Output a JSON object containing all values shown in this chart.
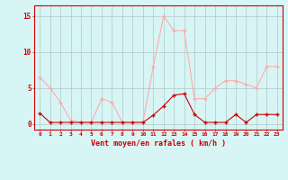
{
  "x": [
    0,
    1,
    2,
    3,
    4,
    5,
    6,
    7,
    8,
    9,
    10,
    11,
    12,
    13,
    14,
    15,
    16,
    17,
    18,
    19,
    20,
    21,
    22,
    23
  ],
  "rafales": [
    6.5,
    5.0,
    3.0,
    0.5,
    0.2,
    0.2,
    3.5,
    3.0,
    0.2,
    0.2,
    0.2,
    8.0,
    15.0,
    13.0,
    13.0,
    3.5,
    3.5,
    5.0,
    6.0,
    6.0,
    5.5,
    5.0,
    8.0,
    8.0
  ],
  "vent_moyen": [
    1.5,
    0.2,
    0.2,
    0.2,
    0.2,
    0.2,
    0.2,
    0.2,
    0.2,
    0.2,
    0.2,
    1.2,
    2.5,
    4.0,
    4.2,
    1.3,
    0.2,
    0.2,
    0.2,
    1.3,
    0.2,
    1.3,
    1.3,
    1.3
  ],
  "color_rafales": "#ffaaaa",
  "color_vent": "#cc0000",
  "bg_color": "#d8f5f5",
  "grid_color": "#b0c8c8",
  "xlabel": "Vent moyen/en rafales ( km/h )",
  "ytick_labels": [
    "0",
    "5",
    "10",
    "15"
  ],
  "ytick_vals": [
    0,
    5,
    10,
    15
  ],
  "ylim": [
    -0.8,
    16.5
  ],
  "xlim": [
    -0.5,
    23.5
  ]
}
